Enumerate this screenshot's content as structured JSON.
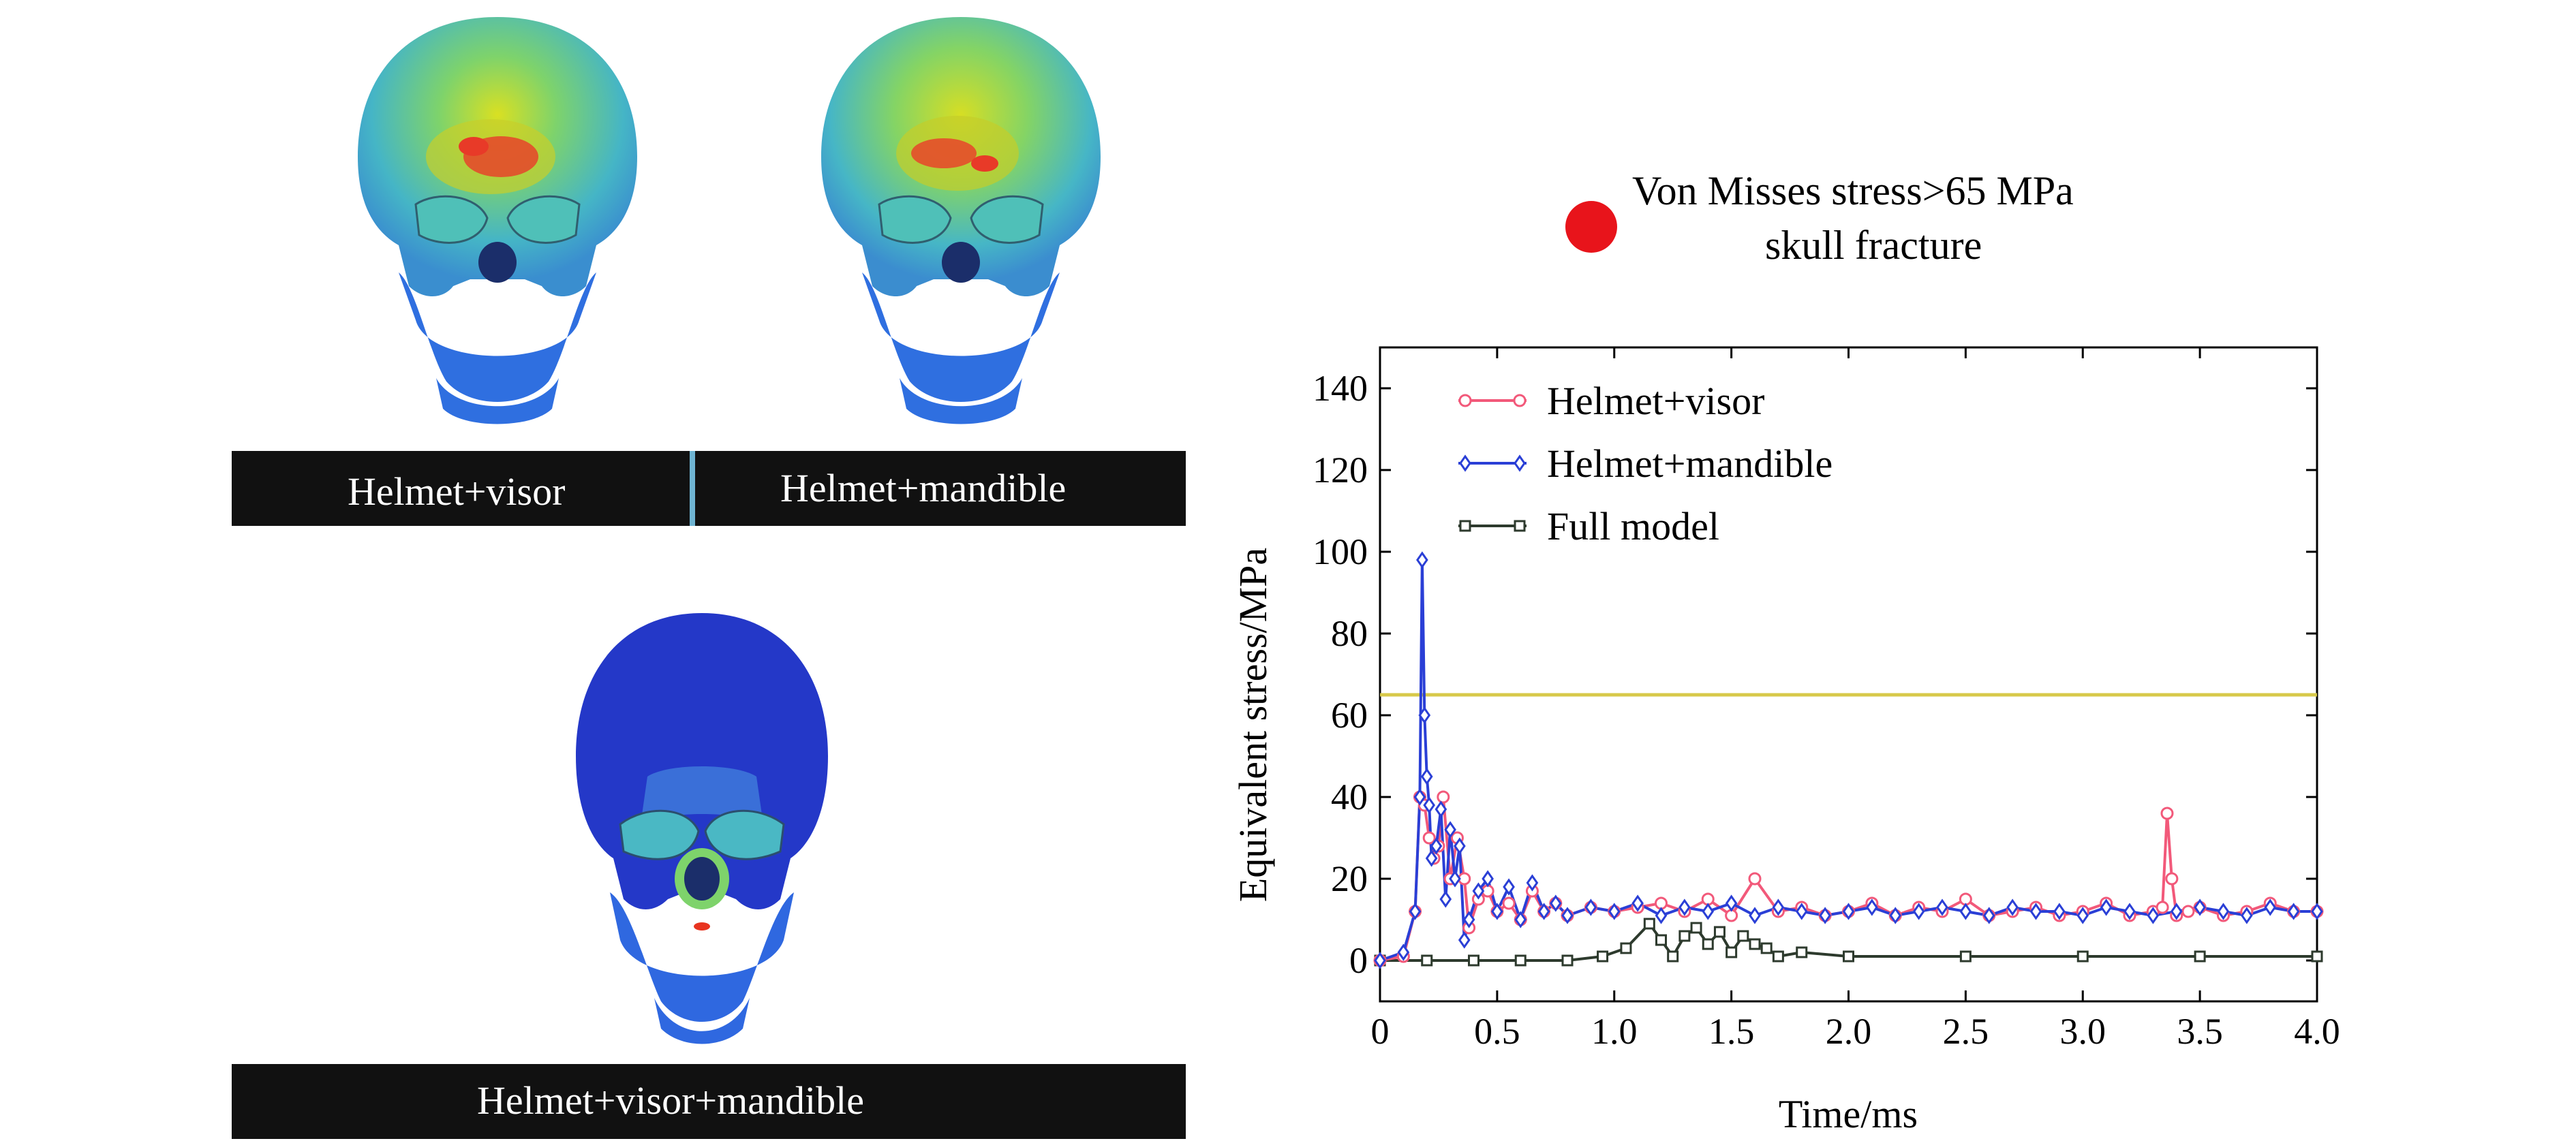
{
  "panels": {
    "top_left_label": "Helmet+visor",
    "top_right_label": "Helmet+mandible",
    "bottom_label": "Helmet+visor+mandible"
  },
  "fracture_legend": {
    "line1": "Von Misses stress>65 MPa",
    "line2": "skull fracture",
    "dot_color": "#e8141b"
  },
  "chart_data": {
    "type": "line",
    "xlabel": "Time/ms",
    "ylabel": "Equivalent stress/MPa",
    "xlim": [
      0,
      4.0
    ],
    "ylim": [
      -10,
      150
    ],
    "xticks": [
      "0",
      "0.5",
      "1.0",
      "1.5",
      "2.0",
      "2.5",
      "3.0",
      "3.5",
      "4.0"
    ],
    "yticks": [
      "0",
      "20",
      "40",
      "60",
      "80",
      "100",
      "120",
      "140"
    ],
    "threshold": {
      "value": 65,
      "color": "#d7c94a"
    },
    "legend_position": "top-left",
    "series": [
      {
        "name": "Helmet+visor",
        "color": "#f2597a",
        "marker": "circle",
        "x": [
          0,
          0.1,
          0.15,
          0.17,
          0.19,
          0.21,
          0.23,
          0.25,
          0.27,
          0.3,
          0.33,
          0.36,
          0.38,
          0.42,
          0.46,
          0.5,
          0.55,
          0.6,
          0.65,
          0.7,
          0.75,
          0.8,
          0.9,
          1.0,
          1.1,
          1.2,
          1.3,
          1.4,
          1.5,
          1.6,
          1.7,
          1.8,
          1.9,
          2.0,
          2.1,
          2.2,
          2.3,
          2.4,
          2.5,
          2.6,
          2.7,
          2.8,
          2.9,
          3.0,
          3.1,
          3.2,
          3.3,
          3.34,
          3.36,
          3.38,
          3.4,
          3.45,
          3.5,
          3.6,
          3.7,
          3.8,
          3.9,
          4.0
        ],
        "y": [
          0,
          1,
          12,
          40,
          38,
          30,
          25,
          28,
          40,
          20,
          30,
          20,
          8,
          15,
          17,
          12,
          14,
          10,
          17,
          12,
          14,
          11,
          13,
          12,
          13,
          14,
          12,
          15,
          11,
          20,
          12,
          13,
          11,
          12,
          14,
          11,
          13,
          12,
          15,
          11,
          12,
          13,
          11,
          12,
          14,
          11,
          12,
          13,
          36,
          20,
          11,
          12,
          13,
          11,
          12,
          14,
          12,
          12
        ]
      },
      {
        "name": "Helmet+mandible",
        "color": "#2a3fd6",
        "marker": "diamond",
        "x": [
          0,
          0.1,
          0.15,
          0.17,
          0.18,
          0.19,
          0.2,
          0.21,
          0.22,
          0.24,
          0.26,
          0.28,
          0.3,
          0.32,
          0.34,
          0.36,
          0.38,
          0.42,
          0.46,
          0.5,
          0.55,
          0.6,
          0.65,
          0.7,
          0.75,
          0.8,
          0.9,
          1.0,
          1.1,
          1.2,
          1.3,
          1.4,
          1.5,
          1.6,
          1.7,
          1.8,
          1.9,
          2.0,
          2.1,
          2.2,
          2.3,
          2.4,
          2.5,
          2.6,
          2.7,
          2.8,
          2.9,
          3.0,
          3.1,
          3.2,
          3.3,
          3.4,
          3.5,
          3.6,
          3.7,
          3.8,
          3.9,
          4.0
        ],
        "y": [
          0,
          2,
          12,
          40,
          98,
          60,
          45,
          38,
          25,
          28,
          37,
          15,
          32,
          20,
          28,
          5,
          10,
          17,
          20,
          12,
          18,
          10,
          19,
          12,
          14,
          11,
          13,
          12,
          14,
          11,
          13,
          12,
          14,
          11,
          13,
          12,
          11,
          12,
          13,
          11,
          12,
          13,
          12,
          11,
          13,
          12,
          12,
          11,
          13,
          12,
          11,
          12,
          13,
          12,
          11,
          13,
          12,
          12
        ]
      },
      {
        "name": "Full model",
        "color": "#2d3a2d",
        "marker": "square",
        "x": [
          0,
          0.2,
          0.4,
          0.6,
          0.8,
          0.95,
          1.05,
          1.15,
          1.2,
          1.25,
          1.3,
          1.35,
          1.4,
          1.45,
          1.5,
          1.55,
          1.6,
          1.65,
          1.7,
          1.8,
          2.0,
          2.5,
          3.0,
          3.5,
          4.0
        ],
        "y": [
          0,
          0,
          0,
          0,
          0,
          1,
          3,
          9,
          5,
          1,
          6,
          8,
          4,
          7,
          2,
          6,
          4,
          3,
          1,
          2,
          1,
          1,
          1,
          1,
          1
        ]
      }
    ]
  }
}
